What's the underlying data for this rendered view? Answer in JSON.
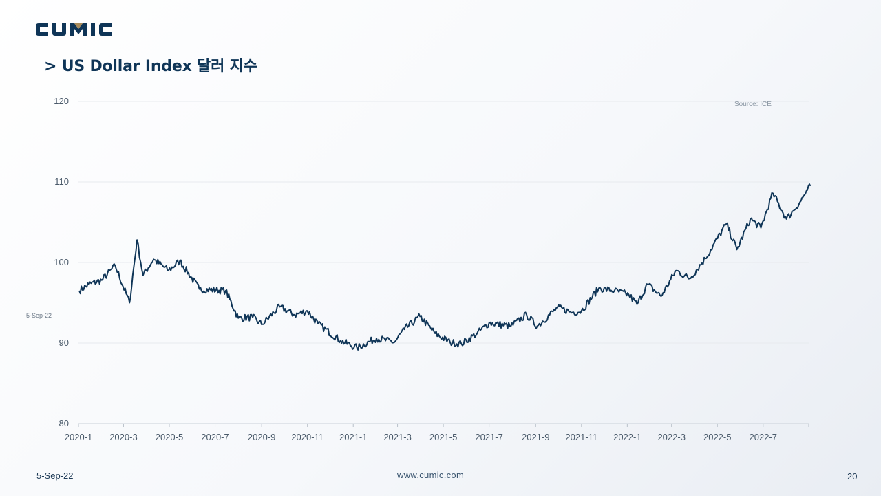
{
  "brand": {
    "name": "CUMIC",
    "primary_color": "#0f3557",
    "accent_color": "#a88a5a"
  },
  "slide": {
    "title": "> US Dollar Index 달러 지수",
    "source": "Source: ICE",
    "side_date": "5-Sep-22",
    "footer_date": "5-Sep-22",
    "footer_url": "www.cumic.com",
    "page_number": "20"
  },
  "chart_data": {
    "type": "line",
    "title": "",
    "xlabel": "",
    "ylabel": "",
    "ylim": [
      80,
      120
    ],
    "yticks": [
      80,
      90,
      100,
      110,
      120
    ],
    "xticks": [
      "2020-1",
      "2020-3",
      "2020-5",
      "2020-7",
      "2020-9",
      "2020-11",
      "2021-1",
      "2021-3",
      "2021-5",
      "2021-7",
      "2021-9",
      "2021-11",
      "2022-1",
      "2022-3",
      "2022-5",
      "2022-7"
    ],
    "grid": true,
    "line_color": "#0f3557",
    "series": [
      {
        "x": [
          "2020-01-02",
          "2020-01-15",
          "2020-02-01",
          "2020-02-19",
          "2020-03-09",
          "2020-03-19",
          "2020-03-27",
          "2020-04-10",
          "2020-04-30",
          "2020-05-15",
          "2020-06-10",
          "2020-07-15",
          "2020-08-01",
          "2020-08-20",
          "2020-09-01",
          "2020-09-25",
          "2020-10-15",
          "2020-11-01",
          "2020-11-15",
          "2020-12-15",
          "2021-01-06",
          "2021-02-01",
          "2021-02-25",
          "2021-03-10",
          "2021-03-31",
          "2021-04-20",
          "2021-05-10",
          "2021-05-25",
          "2021-06-15",
          "2021-07-01",
          "2021-07-30",
          "2021-08-20",
          "2021-09-03",
          "2021-09-30",
          "2021-10-20",
          "2021-11-01",
          "2021-11-24",
          "2021-12-15",
          "2022-01-03",
          "2022-01-14",
          "2022-01-28",
          "2022-02-15",
          "2022-03-07",
          "2022-03-25",
          "2022-04-15",
          "2022-05-13",
          "2022-05-27",
          "2022-06-14",
          "2022-06-28",
          "2022-07-14",
          "2022-08-01",
          "2022-08-10",
          "2022-08-19",
          "2022-08-29",
          "2022-09-02"
        ],
        "y": [
          96.5,
          97.3,
          97.8,
          99.6,
          95.0,
          102.8,
          98.4,
          100.4,
          99.0,
          100.2,
          96.7,
          96.5,
          93.1,
          93.2,
          92.3,
          94.5,
          93.5,
          94.0,
          92.4,
          90.3,
          89.4,
          90.6,
          90.1,
          91.7,
          93.3,
          91.2,
          90.1,
          89.9,
          91.2,
          92.5,
          92.1,
          93.5,
          92.1,
          94.4,
          93.8,
          94.0,
          96.8,
          96.5,
          96.0,
          94.8,
          97.3,
          95.8,
          99.0,
          98.0,
          100.5,
          104.8,
          101.6,
          105.4,
          104.3,
          108.6,
          105.4,
          106.4,
          107.5,
          109.0,
          109.5
        ]
      }
    ]
  }
}
